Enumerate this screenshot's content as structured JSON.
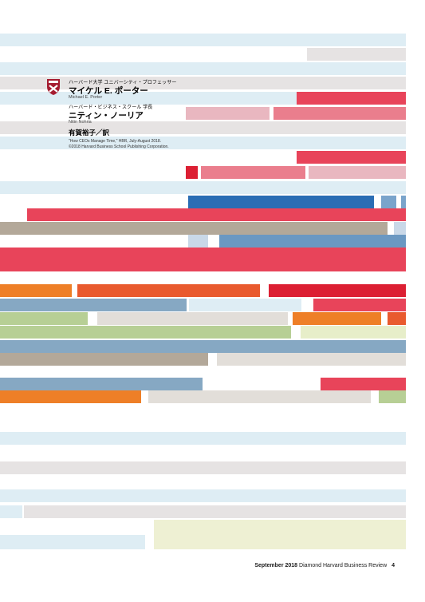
{
  "credits": {
    "porter_title": "ハーバード大学 ユニバーシティ・プロフェッサー",
    "porter_name": "マイケル E. ポーター",
    "porter_roman": "Michael E. Porter",
    "nohria_title": "ハーバード・ビジネス・スクール 学長",
    "nohria_name": "ニティン・ノーリア",
    "nohria_roman": "Nitin Nohria",
    "translator": "有賀裕子／訳",
    "source_line1": "\"How CEOs Manage Time,\" HBR, July-August 2018.",
    "source_line2": "©2018 Harvard Business School Publishing Corporation."
  },
  "footer": {
    "issue": "September 2018",
    "publication": "Diamond Harvard Business Review",
    "page_number": "4"
  },
  "logo": {
    "icon": "harvard-veritas-shield-icon",
    "color": "#a51c30"
  }
}
